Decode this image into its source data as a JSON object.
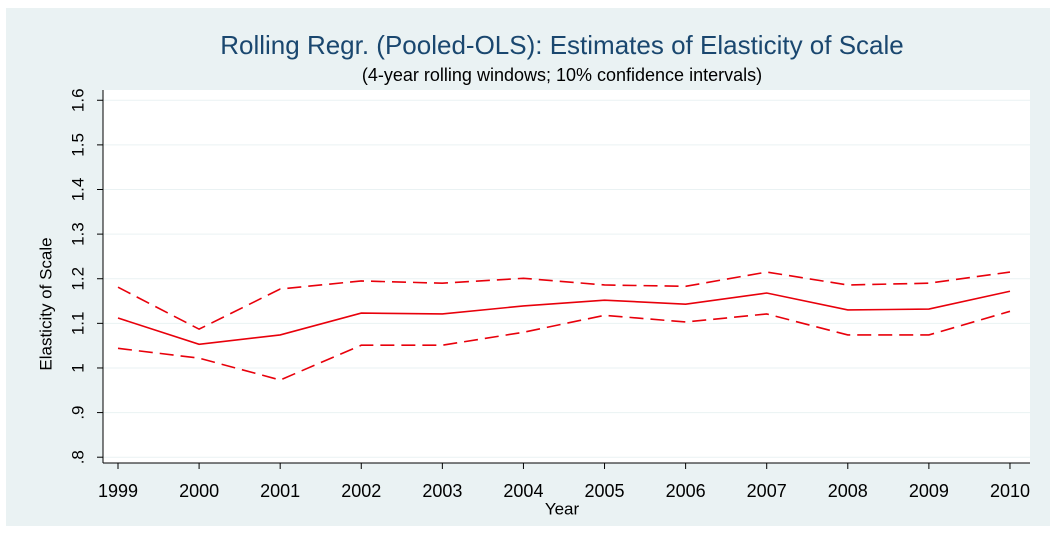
{
  "chart_data": {
    "type": "line",
    "title": "Rolling Regr. (Pooled-OLS): Estimates of Elasticity of Scale",
    "subtitle": "(4-year rolling windows; 10% confidence intervals)",
    "x_label": "Year",
    "y_label": "Elasticity of Scale",
    "x": [
      1999,
      2000,
      2001,
      2002,
      2003,
      2004,
      2005,
      2006,
      2007,
      2008,
      2009,
      2010
    ],
    "series": [
      {
        "color": "#e8000b",
        "dashed": false,
        "values": [
          1.112,
          1.053,
          1.074,
          1.123,
          1.121,
          1.139,
          1.152,
          1.143,
          1.168,
          1.13,
          1.132,
          1.172
        ]
      },
      {
        "color": "#e8000b",
        "dashed": true,
        "values": [
          1.181,
          1.087,
          1.177,
          1.195,
          1.19,
          1.201,
          1.186,
          1.183,
          1.215,
          1.186,
          1.19,
          1.215
        ]
      },
      {
        "color": "#e8000b",
        "dashed": true,
        "values": [
          1.044,
          1.022,
          0.973,
          1.051,
          1.051,
          1.08,
          1.118,
          1.103,
          1.121,
          1.074,
          1.074,
          1.127
        ]
      }
    ],
    "xlim": [
      1998.815,
      2010.247
    ],
    "xticks": [
      1999,
      2000,
      2001,
      2002,
      2003,
      2004,
      2005,
      2006,
      2007,
      2008,
      2009,
      2010
    ],
    "ylim": [
      0.787,
      1.623
    ],
    "yticks": [
      {
        "value": 0.8,
        "label": ".8"
      },
      {
        "value": 0.9,
        "label": ".9"
      },
      1,
      1.1,
      1.2,
      1.3,
      1.4,
      1.5,
      1.6
    ],
    "grid": true
  }
}
